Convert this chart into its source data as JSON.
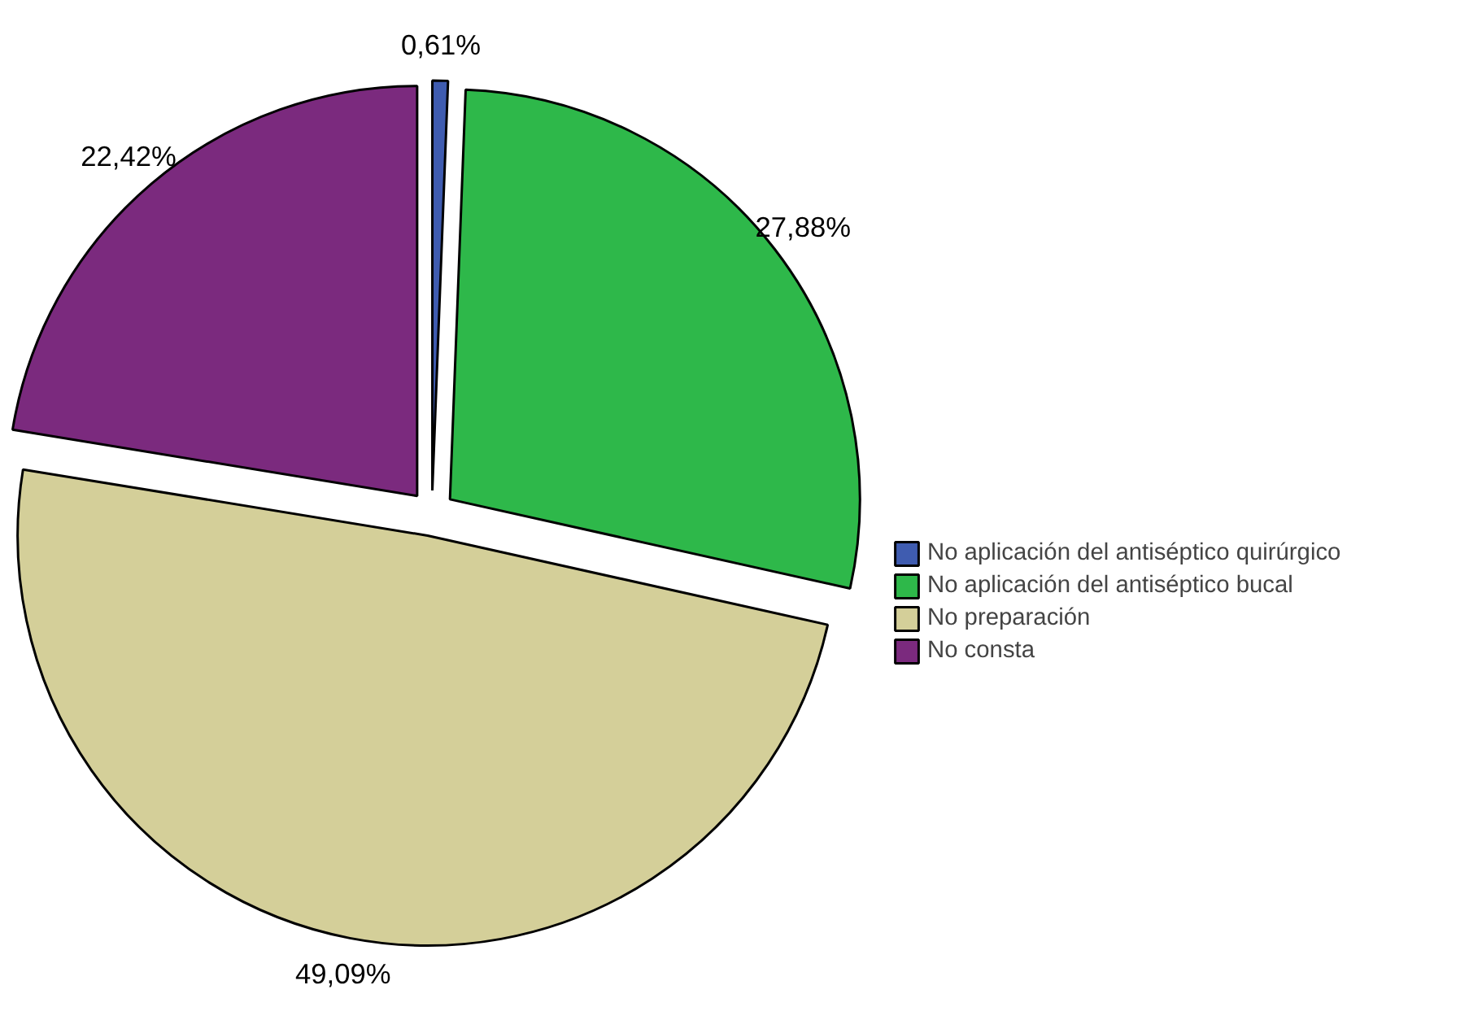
{
  "chart_data": {
    "type": "pie",
    "categories": [
      "No aplicación del antiséptico quirúrgico",
      "No aplicación del antiséptico bucal",
      "No preparación",
      "No consta"
    ],
    "values": [
      0.61,
      27.88,
      49.09,
      22.42
    ],
    "colors": [
      "#3f5cb0",
      "#2eb84a",
      "#d4cf99",
      "#7b2a7e"
    ],
    "value_labels": [
      "0,61%",
      "27,88%",
      "49,09%",
      "22,42%"
    ],
    "legend": "right"
  }
}
